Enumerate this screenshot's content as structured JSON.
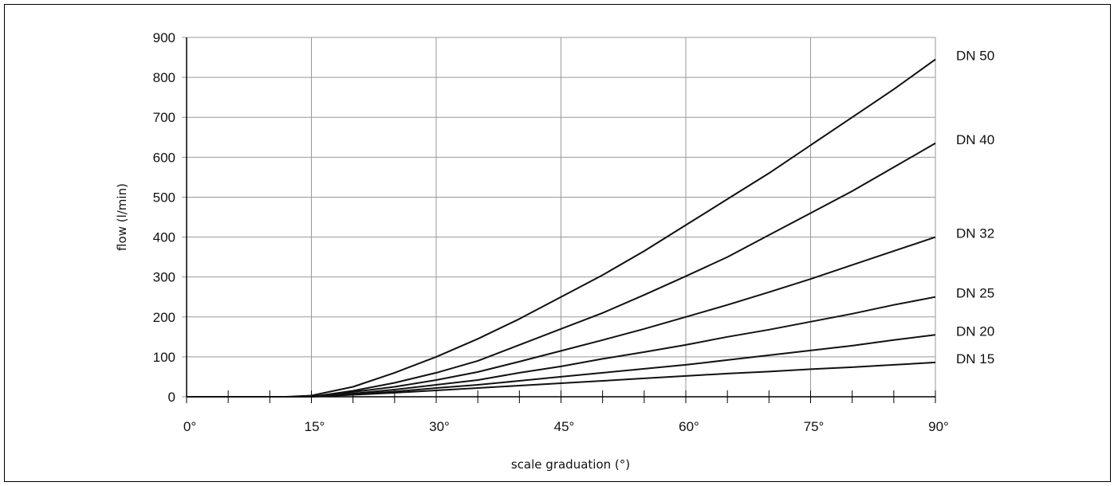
{
  "chart_data": {
    "type": "line",
    "title": "",
    "xlabel": "scale graduation (°)",
    "ylabel": "flow (l/min)",
    "xlim": [
      0,
      90
    ],
    "ylim": [
      0,
      900
    ],
    "x_ticks": [
      0,
      15,
      30,
      45,
      60,
      75,
      90
    ],
    "x_tick_labels": [
      "0°",
      "15°",
      "30°",
      "45°",
      "60°",
      "75°",
      "90°"
    ],
    "y_ticks": [
      0,
      100,
      200,
      300,
      400,
      500,
      600,
      700,
      800,
      900
    ],
    "y_tick_labels": [
      "0",
      "100",
      "200",
      "300",
      "400",
      "500",
      "600",
      "700",
      "800",
      "900"
    ],
    "grid": true,
    "legend": "inline-right",
    "colors": {
      "line": "#111111",
      "grid": "#999999",
      "axis": "#000000"
    },
    "series": [
      {
        "name": "DN 50",
        "x": [
          0,
          12,
          15,
          20,
          25,
          30,
          35,
          40,
          45,
          50,
          55,
          60,
          65,
          70,
          75,
          80,
          85,
          90
        ],
        "y": [
          0,
          0,
          3,
          25,
          60,
          100,
          145,
          195,
          250,
          305,
          365,
          430,
          495,
          560,
          630,
          700,
          770,
          845
        ]
      },
      {
        "name": "DN 40",
        "x": [
          0,
          15,
          20,
          25,
          30,
          35,
          40,
          45,
          50,
          55,
          60,
          65,
          70,
          75,
          80,
          85,
          90
        ],
        "y": [
          0,
          0,
          15,
          35,
          60,
          90,
          130,
          170,
          210,
          255,
          302,
          350,
          405,
          460,
          515,
          575,
          635
        ]
      },
      {
        "name": "DN 32",
        "x": [
          0,
          15,
          20,
          25,
          30,
          35,
          40,
          45,
          50,
          55,
          60,
          65,
          70,
          75,
          80,
          85,
          90
        ],
        "y": [
          0,
          0,
          12,
          25,
          42,
          62,
          88,
          115,
          142,
          170,
          200,
          230,
          262,
          295,
          330,
          365,
          400
        ]
      },
      {
        "name": "DN 25",
        "x": [
          0,
          15,
          20,
          25,
          30,
          35,
          40,
          45,
          50,
          55,
          60,
          65,
          70,
          75,
          80,
          85,
          90
        ],
        "y": [
          0,
          0,
          8,
          18,
          30,
          42,
          60,
          76,
          95,
          112,
          130,
          150,
          168,
          188,
          208,
          230,
          250
        ]
      },
      {
        "name": "DN 20",
        "x": [
          0,
          15,
          20,
          25,
          30,
          35,
          40,
          45,
          50,
          55,
          60,
          65,
          70,
          75,
          80,
          85,
          90
        ],
        "y": [
          0,
          0,
          6,
          13,
          22,
          30,
          40,
          50,
          60,
          70,
          80,
          92,
          104,
          116,
          128,
          142,
          155
        ]
      },
      {
        "name": "DN 15",
        "x": [
          0,
          15,
          20,
          25,
          30,
          35,
          40,
          45,
          50,
          55,
          60,
          65,
          70,
          75,
          80,
          85,
          90
        ],
        "y": [
          0,
          0,
          5,
          10,
          16,
          22,
          28,
          34,
          40,
          46,
          52,
          58,
          63,
          69,
          74,
          80,
          86
        ]
      }
    ]
  }
}
